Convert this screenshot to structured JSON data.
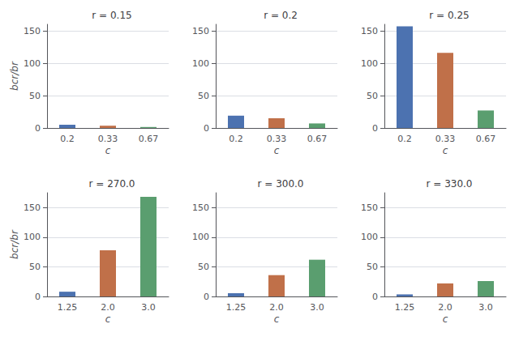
{
  "chart_data": [
    {
      "type": "bar",
      "title": "r = 0.15",
      "categories": [
        "0.2",
        "0.33",
        "0.67"
      ],
      "values": [
        5.0,
        3.5,
        1.5
      ],
      "colors": [
        "#4c72b0",
        "#c07049",
        "#5a9e6f"
      ],
      "xlabel": "c",
      "ylabel": "bcr/br",
      "ylim": [
        0,
        160
      ],
      "yticks": [
        0,
        50,
        100,
        150
      ],
      "grid": true
    },
    {
      "type": "bar",
      "title": "r = 0.2",
      "categories": [
        "0.2",
        "0.33",
        "0.67"
      ],
      "values": [
        19.0,
        15.0,
        7.0
      ],
      "colors": [
        "#4c72b0",
        "#c07049",
        "#5a9e6f"
      ],
      "xlabel": "c",
      "ylim": [
        0,
        160
      ],
      "yticks": [
        0,
        50,
        100,
        150
      ],
      "grid": true
    },
    {
      "type": "bar",
      "title": "r = 0.25",
      "categories": [
        "0.2",
        "0.33",
        "0.67"
      ],
      "values": [
        157.0,
        116.0,
        27.0
      ],
      "colors": [
        "#4c72b0",
        "#c07049",
        "#5a9e6f"
      ],
      "xlabel": "c",
      "ylim": [
        0,
        160
      ],
      "yticks": [
        0,
        50,
        100,
        150
      ],
      "grid": true
    },
    {
      "type": "bar",
      "title": "r = 270.0",
      "categories": [
        "1.25",
        "2.0",
        "3.0"
      ],
      "values": [
        8.0,
        78.0,
        168.0
      ],
      "colors": [
        "#4c72b0",
        "#c07049",
        "#5a9e6f"
      ],
      "xlabel": "c",
      "ylabel": "bcr/br",
      "ylim": [
        0,
        175
      ],
      "yticks": [
        0,
        50,
        100,
        150
      ],
      "grid": true
    },
    {
      "type": "bar",
      "title": "r = 300.0",
      "categories": [
        "1.25",
        "2.0",
        "3.0"
      ],
      "values": [
        5.5,
        36.0,
        62.0
      ],
      "colors": [
        "#4c72b0",
        "#c07049",
        "#5a9e6f"
      ],
      "xlabel": "c",
      "ylim": [
        0,
        175
      ],
      "yticks": [
        0,
        50,
        100,
        150
      ],
      "grid": true
    },
    {
      "type": "bar",
      "title": "r = 330.0",
      "categories": [
        "1.25",
        "2.0",
        "3.0"
      ],
      "values": [
        3.5,
        22.0,
        26.0
      ],
      "colors": [
        "#4c72b0",
        "#c07049",
        "#5a9e6f"
      ],
      "xlabel": "c",
      "ylim": [
        0,
        175
      ],
      "yticks": [
        0,
        50,
        100,
        150
      ],
      "grid": true
    }
  ]
}
